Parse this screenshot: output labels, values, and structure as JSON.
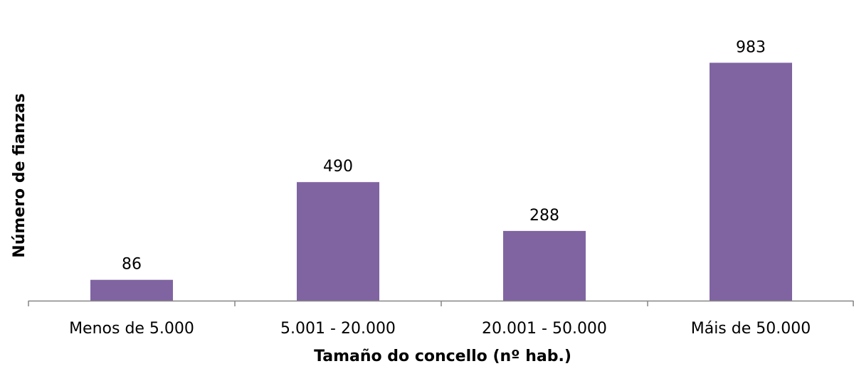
{
  "chart_data": {
    "type": "bar",
    "categories": [
      "Menos de 5.000",
      "5.001 - 20.000",
      "20.001 - 50.000",
      "Máis de 50.000"
    ],
    "values": [
      86,
      490,
      288,
      983
    ],
    "title": "",
    "xlabel": "Tamaño do concello (nº hab.)",
    "ylabel": "Número de fianzas",
    "ylim": [
      0,
      1250
    ],
    "grid": false,
    "legend": "none",
    "data_labels": true,
    "colors": {
      "bar": "#8064a2",
      "axis": "#868686",
      "text": "#000000"
    }
  }
}
